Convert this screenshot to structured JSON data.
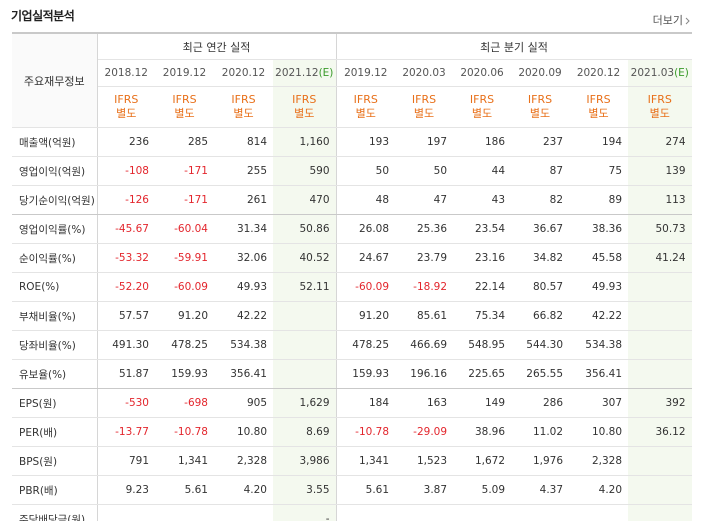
{
  "header": {
    "title": "기업실적분석",
    "more": "더보기"
  },
  "table": {
    "corner": "주요재무정보",
    "groups": [
      {
        "label": "최근 연간 실적",
        "columns": [
          {
            "period": "2018.12",
            "standard": [
              "IFRS",
              "별도"
            ]
          },
          {
            "period": "2019.12",
            "standard": [
              "IFRS",
              "별도"
            ]
          },
          {
            "period": "2020.12",
            "standard": [
              "IFRS",
              "별도"
            ]
          },
          {
            "period": "2021.12",
            "note": "(E)",
            "standard": [
              "IFRS",
              "별도"
            ]
          }
        ]
      },
      {
        "label": "최근 분기 실적",
        "columns": [
          {
            "period": "2019.12",
            "standard": [
              "IFRS",
              "별도"
            ]
          },
          {
            "period": "2020.03",
            "standard": [
              "IFRS",
              "별도"
            ]
          },
          {
            "period": "2020.06",
            "standard": [
              "IFRS",
              "별도"
            ]
          },
          {
            "period": "2020.09",
            "standard": [
              "IFRS",
              "별도"
            ]
          },
          {
            "period": "2020.12",
            "standard": [
              "IFRS",
              "별도"
            ]
          },
          {
            "period": "2021.03",
            "note": "(E)",
            "standard": [
              "IFRS",
              "별도"
            ]
          }
        ]
      }
    ],
    "rows": [
      {
        "label": "매출액(억원)",
        "cells": [
          "236",
          "285",
          "814",
          "1,160",
          "193",
          "197",
          "186",
          "237",
          "194",
          "274"
        ]
      },
      {
        "label": "영업이익(억원)",
        "cells": [
          "-108",
          "-171",
          "255",
          "590",
          "50",
          "50",
          "44",
          "87",
          "75",
          "139"
        ]
      },
      {
        "label": "당기순이익(억원)",
        "cells": [
          "-126",
          "-171",
          "261",
          "470",
          "48",
          "47",
          "43",
          "82",
          "89",
          "113"
        ]
      },
      {
        "label": "영업이익률(%)",
        "cells": [
          "-45.67",
          "-60.04",
          "31.34",
          "50.86",
          "26.08",
          "25.36",
          "23.54",
          "36.67",
          "38.36",
          "50.73"
        ]
      },
      {
        "label": "순이익률(%)",
        "cells": [
          "-53.32",
          "-59.91",
          "32.06",
          "40.52",
          "24.67",
          "23.79",
          "23.16",
          "34.82",
          "45.58",
          "41.24"
        ]
      },
      {
        "label": "ROE(%)",
        "cells": [
          "-52.20",
          "-60.09",
          "49.93",
          "52.11",
          "-60.09",
          "-18.92",
          "22.14",
          "80.57",
          "49.93",
          null
        ]
      },
      {
        "label": "부채비율(%)",
        "cells": [
          "57.57",
          "91.20",
          "42.22",
          null,
          "91.20",
          "85.61",
          "75.34",
          "66.82",
          "42.22",
          null
        ]
      },
      {
        "label": "당좌비율(%)",
        "cells": [
          "491.30",
          "478.25",
          "534.38",
          null,
          "478.25",
          "466.69",
          "548.95",
          "544.30",
          "534.38",
          null
        ]
      },
      {
        "label": "유보율(%)",
        "cells": [
          "51.87",
          "159.93",
          "356.41",
          null,
          "159.93",
          "196.16",
          "225.65",
          "265.55",
          "356.41",
          null
        ]
      },
      {
        "label": "EPS(원)",
        "cells": [
          "-530",
          "-698",
          "905",
          "1,629",
          "184",
          "163",
          "149",
          "286",
          "307",
          "392"
        ]
      },
      {
        "label": "PER(배)",
        "cells": [
          "-13.77",
          "-10.78",
          "10.80",
          "8.69",
          "-10.78",
          "-29.09",
          "38.96",
          "11.02",
          "10.80",
          "36.12"
        ]
      },
      {
        "label": "BPS(원)",
        "cells": [
          "791",
          "1,341",
          "2,328",
          "3,986",
          "1,341",
          "1,523",
          "1,672",
          "1,976",
          "2,328",
          null
        ]
      },
      {
        "label": "PBR(배)",
        "cells": [
          "9.23",
          "5.61",
          "4.20",
          "3.55",
          "5.61",
          "3.87",
          "5.09",
          "4.37",
          "4.20",
          null
        ]
      },
      {
        "label": "주당배당금(원)",
        "cells": [
          null,
          null,
          null,
          "-",
          null,
          null,
          null,
          null,
          null,
          null
        ]
      }
    ]
  }
}
